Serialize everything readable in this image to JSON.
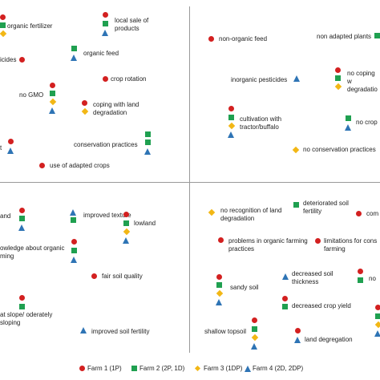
{
  "colors": {
    "farm1": "#d32020",
    "farm2": "#1fa050",
    "farm3": "#f2b715",
    "farm4": "#2e74b5"
  },
  "labels": {
    "organic_fertilizer": "organic fertilizer",
    "local_sale": "local sale of products",
    "icides": "icides",
    "organic_feed": "organic feed",
    "crop_rotation": "crop rotation",
    "no_gmo": "no GMO",
    "coping": "coping with land degradation",
    "t": "t",
    "conservation_practices": "conservation practices",
    "adapted_crops": "use of adapted crops",
    "non_organic_feed": "non-organic feed",
    "non_adapted_plants": "non adapted plants",
    "inorganic_pesticides": "inorganic pesticides",
    "no_coping": "no coping w degradatio",
    "cultivation": "cultivation with tractor/buffalo",
    "no_crop": "no crop",
    "no_conservation": "no conservation practices",
    "and": "and",
    "improved_texture": "improved texture",
    "knowledge": "owledge about organic ming",
    "lowland": "lowland",
    "fair_soil": "fair soil quality",
    "flat_slope": "at slope/ oderately sloping",
    "improved_fertility": "improved soil fertility",
    "no_recognition": "no recognition of land degradation",
    "deteriorated": "deteriorated soil fertility",
    "com": "com",
    "problems": "problems in organic farming practices",
    "limitations": "limitations for cons farming",
    "sandy_soil": "sandy soil",
    "decreased_thickness": "decreased soil thickness",
    "no": "no",
    "decreased_yield": "decreased crop yield",
    "shallow": "shallow topsoil",
    "land_degradation": "land degregation"
  },
  "legend": [
    {
      "label": "Farm 1 (1P)",
      "shape": "circle",
      "color_key": "farm1"
    },
    {
      "label": "Farm 2 (2P, 1D)",
      "shape": "square",
      "color_key": "farm2"
    },
    {
      "label": "Farm 3 (1DP)",
      "shape": "diamond",
      "color_key": "farm3"
    },
    {
      "label": "Farm 4 (2D, 2DP)",
      "shape": "triangle",
      "color_key": "farm4"
    }
  ]
}
